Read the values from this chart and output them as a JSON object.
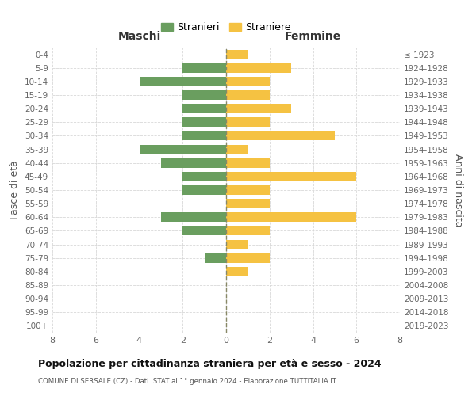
{
  "age_groups": [
    "0-4",
    "5-9",
    "10-14",
    "15-19",
    "20-24",
    "25-29",
    "30-34",
    "35-39",
    "40-44",
    "45-49",
    "50-54",
    "55-59",
    "60-64",
    "65-69",
    "70-74",
    "75-79",
    "80-84",
    "85-89",
    "90-94",
    "95-99",
    "100+"
  ],
  "birth_years": [
    "2019-2023",
    "2014-2018",
    "2009-2013",
    "2004-2008",
    "1999-2003",
    "1994-1998",
    "1989-1993",
    "1984-1988",
    "1979-1983",
    "1974-1978",
    "1969-1973",
    "1964-1968",
    "1959-1963",
    "1954-1958",
    "1949-1953",
    "1944-1948",
    "1939-1943",
    "1934-1938",
    "1929-1933",
    "1924-1928",
    "≤ 1923"
  ],
  "maschi": [
    0,
    2,
    4,
    2,
    2,
    2,
    2,
    4,
    3,
    2,
    2,
    0,
    3,
    2,
    0,
    1,
    0,
    0,
    0,
    0,
    0
  ],
  "femmine": [
    1,
    3,
    2,
    2,
    3,
    2,
    5,
    1,
    2,
    6,
    2,
    2,
    6,
    2,
    1,
    2,
    1,
    0,
    0,
    0,
    0
  ],
  "maschi_color": "#6a9e5f",
  "femmine_color": "#f5c242",
  "title": "Popolazione per cittadinanza straniera per età e sesso - 2024",
  "subtitle": "COMUNE DI SERSALE (CZ) - Dati ISTAT al 1° gennaio 2024 - Elaborazione TUTTITALIA.IT",
  "legend_maschi": "Stranieri",
  "legend_femmine": "Straniere",
  "xlabel_left": "Maschi",
  "xlabel_right": "Femmine",
  "ylabel_left": "Fasce di età",
  "ylabel_right": "Anni di nascita",
  "xlim": 8,
  "background_color": "#ffffff",
  "grid_color": "#d8d8d8"
}
